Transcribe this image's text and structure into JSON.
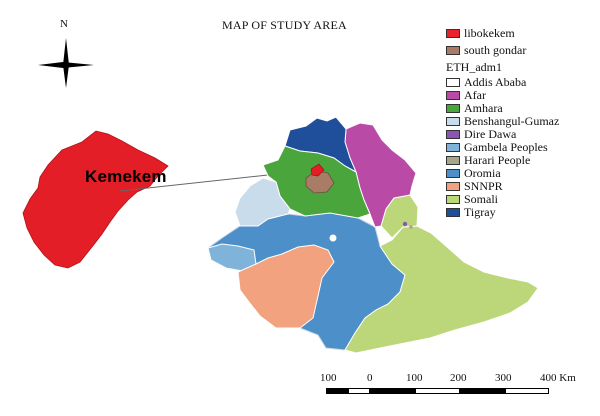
{
  "map": {
    "title": "MAP OF STUDY AREA",
    "north_label": "N",
    "callout_label": "Kemekem"
  },
  "legend": {
    "items_top": [
      {
        "label": "libokekem",
        "color": "#e8232b"
      },
      {
        "label": "south gondar",
        "color": "#a97c67"
      }
    ],
    "layer_title": "ETH_adm1",
    "regions": [
      {
        "label": "Addis Ababa",
        "color": "#ffffff"
      },
      {
        "label": "Afar",
        "color": "#b94aa6"
      },
      {
        "label": "Amhara",
        "color": "#4aa63c"
      },
      {
        "label": "Benshangul-Gumaz",
        "color": "#c8dcec"
      },
      {
        "label": "Dire Dawa",
        "color": "#8d55b3"
      },
      {
        "label": "Gambela Peoples",
        "color": "#7fb3d9"
      },
      {
        "label": "Harari People",
        "color": "#a8a68a"
      },
      {
        "label": "Oromia",
        "color": "#4d8fc8"
      },
      {
        "label": "SNNPR",
        "color": "#f2a27e"
      },
      {
        "label": "Somali",
        "color": "#bcd67a"
      },
      {
        "label": "Tigray",
        "color": "#1f4f9a"
      }
    ]
  },
  "scale_bar": {
    "labels": [
      "100",
      "0",
      "100",
      "200",
      "300",
      "400 Km"
    ]
  }
}
